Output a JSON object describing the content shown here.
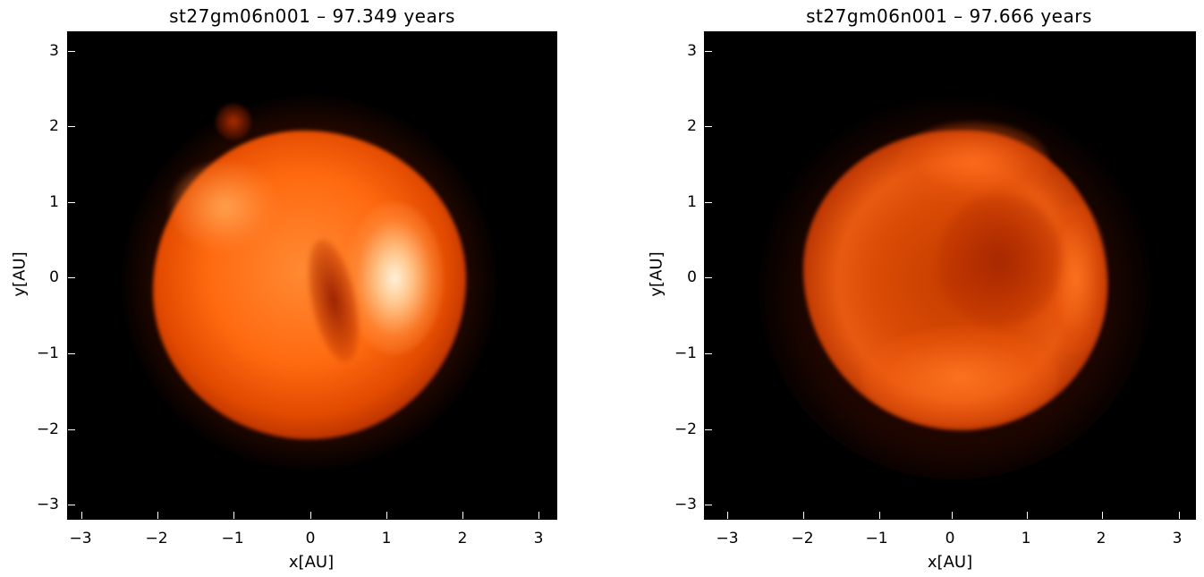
{
  "panels": [
    {
      "title": "st27gm06n001 – 97.349 years",
      "xlabel": "x[AU]",
      "ylabel": "y[AU]",
      "xticks": [
        "−3",
        "−2",
        "−1",
        "0",
        "1",
        "2",
        "3"
      ],
      "yticks": [
        "3",
        "2",
        "1",
        "0",
        "−1",
        "−2",
        "−3"
      ]
    },
    {
      "title": "st27gm06n001 – 97.666 years",
      "xlabel": "x[AU]",
      "ylabel": "y[AU]",
      "xticks": [
        "−3",
        "−2",
        "−1",
        "0",
        "1",
        "2",
        "3"
      ],
      "yticks": [
        "3",
        "2",
        "1",
        "0",
        "−1",
        "−2",
        "−3"
      ]
    }
  ],
  "colors": {
    "background": "#000000",
    "glow_outer": "#5a1200",
    "glow_mid": "#c83a00",
    "glow_bright": "#ff7a1a",
    "glow_hot": "#ffe8c0"
  }
}
